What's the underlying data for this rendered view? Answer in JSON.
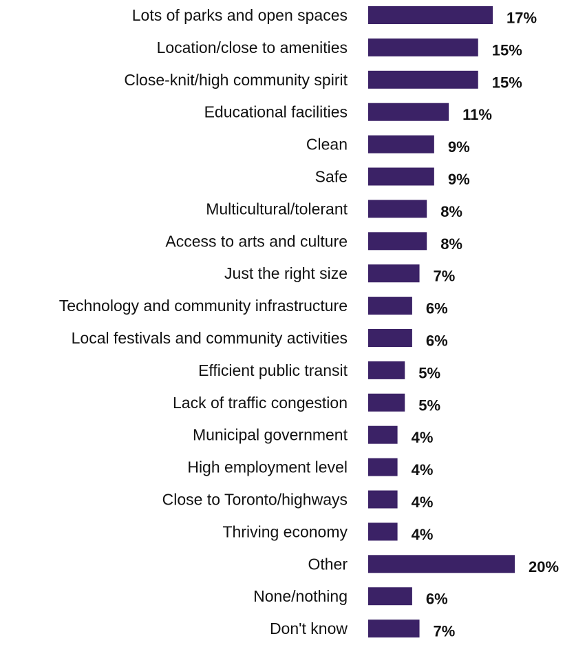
{
  "chart_data": {
    "type": "bar",
    "orientation": "horizontal",
    "categories": [
      "Lots of parks and open spaces",
      "Location/close to amenities",
      "Close-knit/high community spirit",
      "Educational facilities",
      "Clean",
      "Safe",
      "Multicultural/tolerant",
      "Access to arts and culture",
      "Just the right size",
      "Technology and community infrastructure",
      "Local festivals and community activities",
      "Efficient public transit",
      "Lack of traffic congestion",
      "Municipal government",
      "High employment level",
      "Close to Toronto/highways",
      "Thriving economy",
      "Other",
      "None/nothing",
      "Don't know"
    ],
    "values": [
      17,
      15,
      15,
      11,
      9,
      9,
      8,
      8,
      7,
      6,
      6,
      5,
      5,
      4,
      4,
      4,
      4,
      20,
      6,
      7
    ],
    "value_labels": [
      "17%",
      "15%",
      "15%",
      "11%",
      "9%",
      "9%",
      "8%",
      "8%",
      "7%",
      "6%",
      "6%",
      "5%",
      "5%",
      "4%",
      "4%",
      "4%",
      "4%",
      "20%",
      "6%",
      "7%"
    ],
    "bar_color": "#3b2266",
    "xlim": [
      0,
      20
    ],
    "grid": false,
    "title": "",
    "xlabel": "",
    "ylabel": ""
  }
}
